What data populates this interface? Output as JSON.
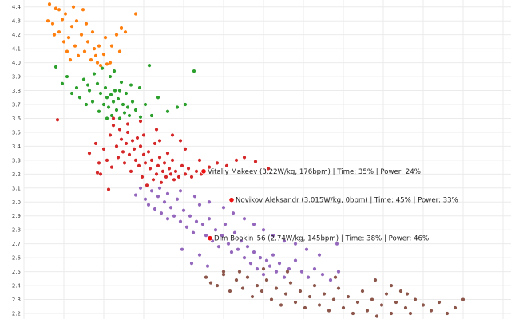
{
  "chart_data": {
    "type": "scatter",
    "title": "",
    "xlabel": "",
    "ylabel": "",
    "ylim": [
      2.16,
      4.45
    ],
    "y_ticks": [
      2.2,
      2.3,
      2.4,
      2.5,
      2.6,
      2.7,
      2.8,
      2.9,
      3.0,
      3.1,
      3.2,
      3.3,
      3.4,
      3.5,
      3.6,
      3.7,
      3.8,
      3.9,
      4.0,
      4.1,
      4.2,
      4.3,
      4.4
    ],
    "y_tick_labels": [
      "2.2",
      "2.3",
      "2.4",
      "2.5",
      "2.6",
      "2.7",
      "2.8",
      "2.9",
      "3.0",
      "3.1",
      "3.2",
      "3.3",
      "3.4",
      "3.5",
      "3.6",
      "3.7",
      "3.8",
      "3.9",
      "4.0",
      "4.1",
      "4.2",
      "4.3",
      "4.4"
    ],
    "grid": true,
    "legend": "none",
    "series": [
      {
        "color": "#ff7f0e",
        "points": [
          [
            62,
            4.42
          ],
          [
            66,
            4.28
          ],
          [
            70,
            4.39
          ],
          [
            74,
            4.22
          ],
          [
            78,
            4.31
          ],
          [
            82,
            4.35
          ],
          [
            86,
            4.18
          ],
          [
            90,
            4.26
          ],
          [
            94,
            4.12
          ],
          [
            98,
            4.05
          ],
          [
            102,
            4.2
          ],
          [
            106,
            4.08
          ],
          [
            110,
            4.15
          ],
          [
            114,
            4.02
          ],
          [
            118,
            4.1
          ],
          [
            122,
            4.0
          ],
          [
            126,
            3.98
          ],
          [
            130,
            4.06
          ],
          [
            134,
            3.99
          ],
          [
            140,
            4.12
          ],
          [
            146,
            4.2
          ],
          [
            152,
            4.25
          ],
          [
            157,
            4.22
          ],
          [
            170,
            4.35
          ],
          [
            74,
            4.38
          ],
          [
            80,
            4.15
          ],
          [
            88,
            4.02
          ],
          [
            96,
            4.3
          ],
          [
            104,
            4.38
          ],
          [
            116,
            4.22
          ],
          [
            124,
            4.12
          ],
          [
            138,
            4.0
          ],
          [
            150,
            4.08
          ],
          [
            60,
            4.3
          ],
          [
            68,
            4.2
          ],
          [
            84,
            4.08
          ],
          [
            92,
            4.4
          ],
          [
            108,
            4.28
          ],
          [
            120,
            4.05
          ],
          [
            132,
            4.18
          ]
        ]
      },
      {
        "color": "#2ca02c",
        "points": [
          [
            70,
            3.97
          ],
          [
            78,
            3.85
          ],
          [
            84,
            3.9
          ],
          [
            90,
            3.78
          ],
          [
            96,
            3.82
          ],
          [
            100,
            3.75
          ],
          [
            105,
            3.88
          ],
          [
            108,
            3.7
          ],
          [
            112,
            3.8
          ],
          [
            116,
            3.72
          ],
          [
            118,
            3.92
          ],
          [
            122,
            3.85
          ],
          [
            124,
            3.65
          ],
          [
            126,
            3.78
          ],
          [
            130,
            3.7
          ],
          [
            132,
            3.82
          ],
          [
            134,
            3.75
          ],
          [
            136,
            3.68
          ],
          [
            138,
            3.9
          ],
          [
            140,
            3.62
          ],
          [
            142,
            3.72
          ],
          [
            144,
            3.8
          ],
          [
            146,
            3.66
          ],
          [
            148,
            3.74
          ],
          [
            150,
            3.6
          ],
          [
            152,
            3.86
          ],
          [
            154,
            3.7
          ],
          [
            156,
            3.64
          ],
          [
            158,
            3.78
          ],
          [
            160,
            3.68
          ],
          [
            162,
            3.62
          ],
          [
            166,
            3.72
          ],
          [
            170,
            3.66
          ],
          [
            175,
            3.82
          ],
          [
            182,
            3.7
          ],
          [
            190,
            3.62
          ],
          [
            198,
            3.75
          ],
          [
            210,
            3.65
          ],
          [
            222,
            3.68
          ],
          [
            232,
            3.7
          ],
          [
            187,
            3.98
          ],
          [
            243,
            3.94
          ],
          [
            128,
            3.96
          ],
          [
            134,
            3.6
          ],
          [
            143,
            3.94
          ],
          [
            110,
            3.84
          ],
          [
            164,
            3.84
          ],
          [
            176,
            3.61
          ],
          [
            150,
            3.8
          ],
          [
            139,
            3.77
          ]
        ]
      },
      {
        "color": "#d62728",
        "points": [
          [
            72,
            3.59
          ],
          [
            112,
            3.35
          ],
          [
            120,
            3.42
          ],
          [
            124,
            3.28
          ],
          [
            126,
            3.2
          ],
          [
            130,
            3.38
          ],
          [
            134,
            3.3
          ],
          [
            138,
            3.48
          ],
          [
            140,
            3.25
          ],
          [
            142,
            3.55
          ],
          [
            146,
            3.4
          ],
          [
            148,
            3.32
          ],
          [
            150,
            3.52
          ],
          [
            152,
            3.45
          ],
          [
            154,
            3.36
          ],
          [
            156,
            3.28
          ],
          [
            158,
            3.42
          ],
          [
            160,
            3.5
          ],
          [
            162,
            3.34
          ],
          [
            164,
            3.22
          ],
          [
            166,
            3.44
          ],
          [
            168,
            3.38
          ],
          [
            170,
            3.3
          ],
          [
            172,
            3.46
          ],
          [
            174,
            3.26
          ],
          [
            176,
            3.4
          ],
          [
            178,
            3.18
          ],
          [
            180,
            3.34
          ],
          [
            182,
            3.28
          ],
          [
            184,
            3.12
          ],
          [
            186,
            3.36
          ],
          [
            188,
            3.24
          ],
          [
            190,
            3.3
          ],
          [
            192,
            3.16
          ],
          [
            194,
            3.42
          ],
          [
            196,
            3.2
          ],
          [
            198,
            3.26
          ],
          [
            200,
            3.32
          ],
          [
            202,
            3.14
          ],
          [
            204,
            3.22
          ],
          [
            206,
            3.28
          ],
          [
            208,
            3.18
          ],
          [
            210,
            3.35
          ],
          [
            212,
            3.24
          ],
          [
            214,
            3.2
          ],
          [
            216,
            3.3
          ],
          [
            218,
            3.16
          ],
          [
            220,
            3.22
          ],
          [
            224,
            3.18
          ],
          [
            228,
            3.26
          ],
          [
            232,
            3.2
          ],
          [
            236,
            3.24
          ],
          [
            240,
            3.18
          ],
          [
            246,
            3.22
          ],
          [
            252,
            3.2
          ],
          [
            262,
            3.25
          ],
          [
            272,
            3.28
          ],
          [
            284,
            3.26
          ],
          [
            296,
            3.3
          ],
          [
            306,
            3.32
          ],
          [
            320,
            3.29
          ],
          [
            336,
            3.24
          ],
          [
            122,
            3.21
          ],
          [
            136,
            3.09
          ],
          [
            160,
            3.56
          ],
          [
            176,
            3.58
          ],
          [
            142,
            3.6
          ],
          [
            200,
            3.44
          ],
          [
            216,
            3.48
          ],
          [
            232,
            3.38
          ],
          [
            226,
            3.44
          ],
          [
            250,
            3.3
          ],
          [
            180,
            3.48
          ],
          [
            196,
            3.52
          ]
        ]
      },
      {
        "color": "#9467bd",
        "points": [
          [
            170,
            3.05
          ],
          [
            176,
            3.1
          ],
          [
            182,
            3.02
          ],
          [
            186,
            2.98
          ],
          [
            190,
            3.08
          ],
          [
            194,
            2.95
          ],
          [
            198,
            3.04
          ],
          [
            202,
            2.92
          ],
          [
            206,
            3.0
          ],
          [
            210,
            2.88
          ],
          [
            214,
            2.96
          ],
          [
            218,
            2.9
          ],
          [
            222,
            3.02
          ],
          [
            226,
            2.86
          ],
          [
            230,
            2.94
          ],
          [
            234,
            2.82
          ],
          [
            238,
            2.9
          ],
          [
            242,
            2.78
          ],
          [
            246,
            2.86
          ],
          [
            250,
            2.98
          ],
          [
            254,
            2.84
          ],
          [
            258,
            2.76
          ],
          [
            262,
            2.88
          ],
          [
            266,
            2.72
          ],
          [
            270,
            2.8
          ],
          [
            274,
            2.68
          ],
          [
            278,
            2.76
          ],
          [
            282,
            2.84
          ],
          [
            286,
            2.7
          ],
          [
            290,
            2.64
          ],
          [
            294,
            2.78
          ],
          [
            298,
            2.66
          ],
          [
            302,
            2.72
          ],
          [
            306,
            2.6
          ],
          [
            310,
            2.68
          ],
          [
            314,
            2.56
          ],
          [
            318,
            2.64
          ],
          [
            322,
            2.52
          ],
          [
            326,
            2.6
          ],
          [
            330,
            2.48
          ],
          [
            334,
            2.58
          ],
          [
            338,
            2.54
          ],
          [
            342,
            2.62
          ],
          [
            346,
            2.5
          ],
          [
            350,
            2.56
          ],
          [
            356,
            2.46
          ],
          [
            362,
            2.52
          ],
          [
            370,
            2.58
          ],
          [
            378,
            2.5
          ],
          [
            386,
            2.46
          ],
          [
            394,
            2.52
          ],
          [
            404,
            2.48
          ],
          [
            414,
            2.44
          ],
          [
            424,
            2.5
          ],
          [
            240,
            2.56
          ],
          [
            250,
            2.62
          ],
          [
            260,
            2.54
          ],
          [
            228,
            2.66
          ],
          [
            200,
            3.1
          ],
          [
            280,
            2.96
          ],
          [
            292,
            2.92
          ],
          [
            306,
            2.88
          ],
          [
            318,
            2.84
          ],
          [
            330,
            2.8
          ],
          [
            342,
            2.76
          ],
          [
            356,
            2.72
          ],
          [
            370,
            2.7
          ],
          [
            384,
            2.66
          ],
          [
            400,
            2.62
          ],
          [
            422,
            2.7
          ],
          [
            210,
            3.06
          ],
          [
            226,
            3.08
          ],
          [
            244,
            3.04
          ],
          [
            262,
            3.0
          ]
        ]
      },
      {
        "color": "#8c564b",
        "points": [
          [
            258,
            2.46
          ],
          [
            264,
            2.42
          ],
          [
            272,
            2.4
          ],
          [
            280,
            2.48
          ],
          [
            288,
            2.36
          ],
          [
            296,
            2.44
          ],
          [
            304,
            2.38
          ],
          [
            310,
            2.46
          ],
          [
            316,
            2.32
          ],
          [
            322,
            2.4
          ],
          [
            328,
            2.36
          ],
          [
            334,
            2.44
          ],
          [
            340,
            2.3
          ],
          [
            346,
            2.38
          ],
          [
            352,
            2.26
          ],
          [
            358,
            2.34
          ],
          [
            364,
            2.42
          ],
          [
            370,
            2.28
          ],
          [
            376,
            2.36
          ],
          [
            382,
            2.24
          ],
          [
            388,
            2.32
          ],
          [
            394,
            2.4
          ],
          [
            400,
            2.26
          ],
          [
            406,
            2.34
          ],
          [
            412,
            2.22
          ],
          [
            418,
            2.3
          ],
          [
            424,
            2.38
          ],
          [
            430,
            2.24
          ],
          [
            436,
            2.32
          ],
          [
            442,
            2.2
          ],
          [
            448,
            2.28
          ],
          [
            454,
            2.36
          ],
          [
            460,
            2.22
          ],
          [
            466,
            2.3
          ],
          [
            472,
            2.18
          ],
          [
            478,
            2.26
          ],
          [
            484,
            2.34
          ],
          [
            490,
            2.2
          ],
          [
            496,
            2.28
          ],
          [
            502,
            2.36
          ],
          [
            508,
            2.24
          ],
          [
            514,
            2.2
          ],
          [
            520,
            2.3
          ],
          [
            530,
            2.26
          ],
          [
            540,
            2.22
          ],
          [
            550,
            2.28
          ],
          [
            560,
            2.2
          ],
          [
            570,
            2.24
          ],
          [
            580,
            2.3
          ],
          [
            470,
            2.44
          ],
          [
            490,
            2.4
          ],
          [
            510,
            2.34
          ],
          [
            420,
            2.46
          ],
          [
            360,
            2.5
          ],
          [
            330,
            2.52
          ],
          [
            300,
            2.5
          ],
          [
            280,
            2.5
          ]
        ]
      }
    ],
    "highlighted": [
      {
        "x": 255,
        "y": 3.22,
        "label": "Vitaliy Makeev (3.22W/kg, 176bpm) | Time: 35% | Power: 24%"
      },
      {
        "x": 290,
        "y": 3.015,
        "label": "Novikov Aleksandr (3.015W/kg, 0bpm) | Time: 45% | Power: 33%"
      },
      {
        "x": 263,
        "y": 2.74,
        "label": "Dim Bookin_56 (2.74W/kg, 145bpm) | Time: 38% | Power: 46%"
      }
    ]
  }
}
